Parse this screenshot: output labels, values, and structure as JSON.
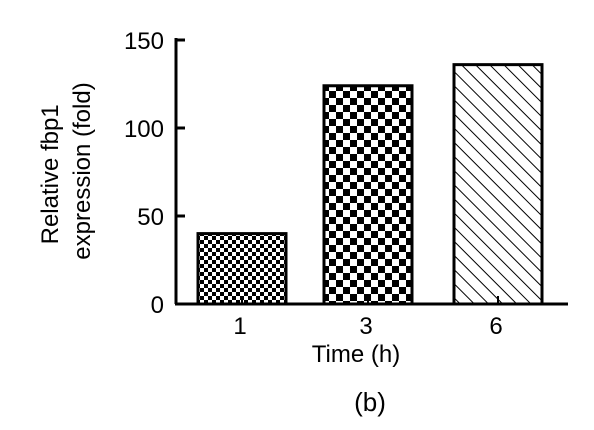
{
  "chart_data": {
    "type": "bar",
    "categories": [
      "1",
      "3",
      "6"
    ],
    "values": [
      40,
      124,
      136
    ],
    "xlabel": "Time (h)",
    "ylabel_lines": [
      "Relative fbp1",
      "expression (fold)"
    ],
    "yticks": [
      0,
      50,
      100,
      150
    ],
    "ylim": [
      0,
      150
    ],
    "grid": false,
    "legend": "none",
    "fills": [
      "fine-checker",
      "coarse-checker",
      "diagonal-hatch"
    ],
    "colors": {
      "ink": "#000000",
      "background": "#ffffff"
    }
  },
  "panel_label": "(b)"
}
